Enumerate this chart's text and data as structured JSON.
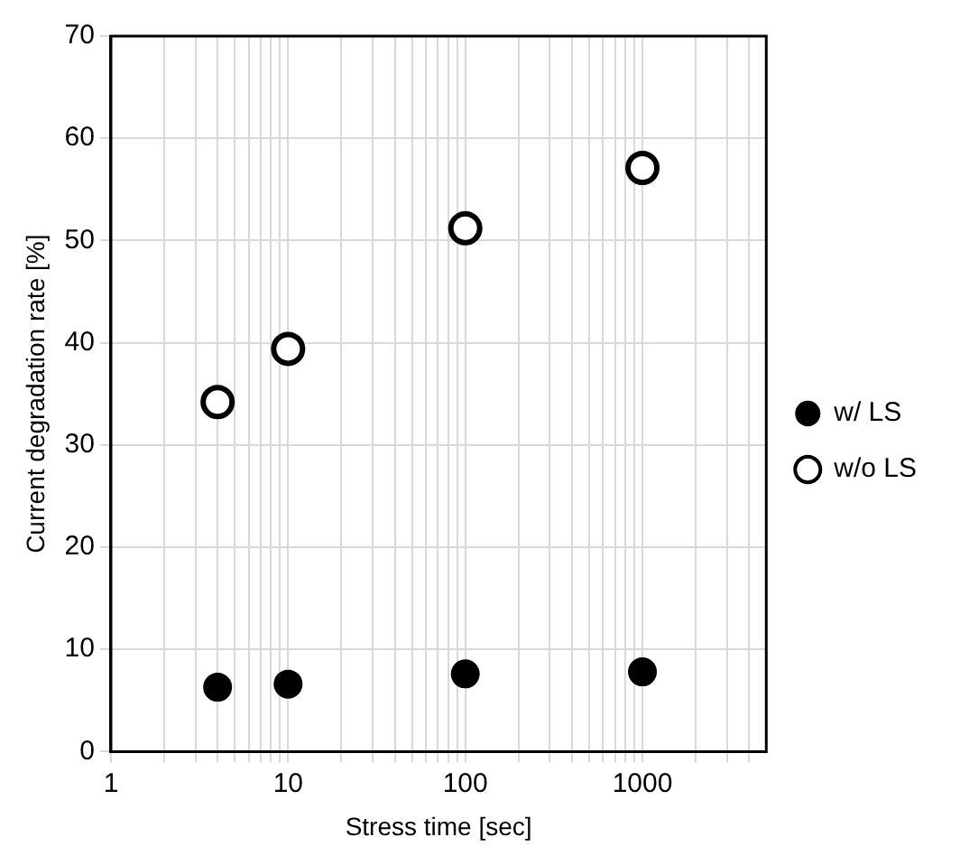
{
  "chart_data": {
    "type": "scatter",
    "xlabel": "Stress time [sec]",
    "ylabel": "Current degradation rate [%]",
    "x": [
      4,
      10,
      100,
      1000
    ],
    "series": [
      {
        "name": "w/ LS",
        "color": "#000000",
        "values": [
          6.3,
          6.6,
          7.6,
          7.8
        ]
      },
      {
        "name": "w/o LS",
        "color": "#000000",
        "values": [
          34.2,
          39.4,
          51.2,
          57.1
        ]
      }
    ],
    "log": "x",
    "xlim": [
      1,
      5000
    ],
    "xticks": [
      1,
      {
        "value": 2,
        "label": null
      },
      {
        "value": 3,
        "label": null
      },
      {
        "value": 4,
        "label": null
      },
      {
        "value": 5,
        "label": null
      },
      {
        "value": 6,
        "label": null
      },
      {
        "value": 7,
        "label": null
      },
      {
        "value": 8,
        "label": null
      },
      {
        "value": 9,
        "label": null
      },
      10,
      {
        "value": 20,
        "label": null
      },
      {
        "value": 30,
        "label": null
      },
      {
        "value": 40,
        "label": null
      },
      {
        "value": 50,
        "label": null
      },
      {
        "value": 60,
        "label": null
      },
      {
        "value": 70,
        "label": null
      },
      {
        "value": 80,
        "label": null
      },
      {
        "value": 90,
        "label": null
      },
      100,
      {
        "value": 200,
        "label": null
      },
      {
        "value": 300,
        "label": null
      },
      {
        "value": 400,
        "label": null
      },
      {
        "value": 500,
        "label": null
      },
      {
        "value": 600,
        "label": null
      },
      {
        "value": 700,
        "label": null
      },
      {
        "value": 800,
        "label": null
      },
      {
        "value": 900,
        "label": null
      },
      1000,
      {
        "value": 2000,
        "label": null
      },
      {
        "value": 3000,
        "label": null
      },
      {
        "value": 4000,
        "label": null
      }
    ],
    "ylim": [
      0,
      70
    ],
    "yticks": [
      0,
      10,
      20,
      30,
      40,
      50,
      60,
      70
    ],
    "grid": true,
    "legend": "right",
    "marker": "circle"
  }
}
